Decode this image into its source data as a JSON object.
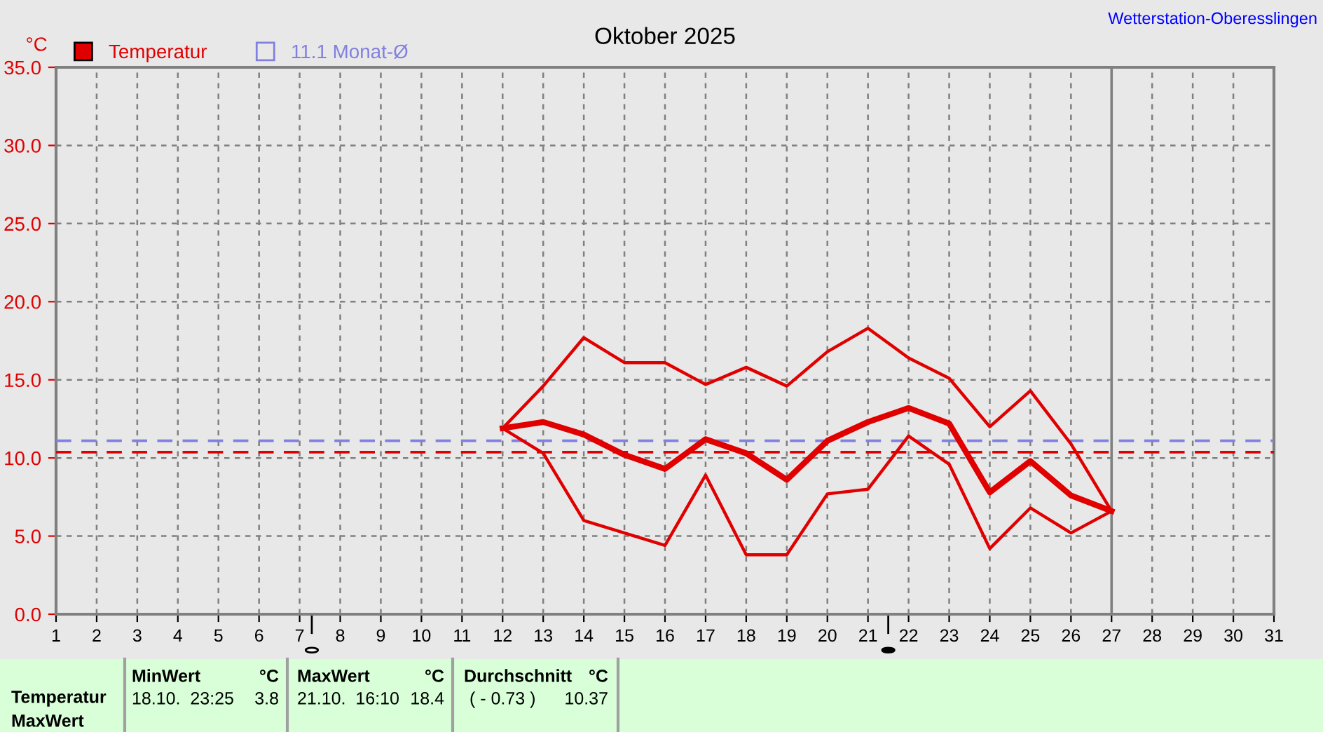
{
  "chart_data": {
    "type": "line",
    "title": "Oktober 2025",
    "ylabel": "°C",
    "x": [
      12,
      13,
      14,
      15,
      16,
      17,
      18,
      19,
      20,
      21,
      22,
      23,
      24,
      25,
      26,
      27
    ],
    "series": [
      {
        "color": "#e00000",
        "values": [
          11.9,
          14.6,
          17.7,
          16.1,
          16.1,
          14.7,
          15.8,
          14.6,
          16.8,
          18.3,
          16.4,
          15.1,
          12.0,
          14.3,
          10.9,
          6.6
        ]
      },
      {
        "name": "Temperatur",
        "color": "#e00000",
        "values": [
          11.9,
          12.3,
          11.5,
          10.2,
          9.3,
          11.2,
          10.3,
          8.6,
          11.1,
          12.3,
          13.2,
          12.2,
          7.8,
          9.8,
          7.6,
          6.6
        ]
      },
      {
        "color": "#e00000",
        "values": [
          11.9,
          10.3,
          6.0,
          5.2,
          4.4,
          8.9,
          3.8,
          3.8,
          7.7,
          8.0,
          11.4,
          9.6,
          4.2,
          6.8,
          5.2,
          6.6
        ]
      }
    ],
    "xlim": [
      1,
      31
    ],
    "xticks": [
      1,
      2,
      3,
      4,
      5,
      6,
      7,
      8,
      9,
      10,
      11,
      12,
      13,
      14,
      15,
      16,
      17,
      18,
      19,
      20,
      21,
      22,
      23,
      24,
      25,
      26,
      27,
      28,
      29,
      30,
      31
    ],
    "ylim": [
      0,
      35
    ],
    "yticks": [
      {
        "value": 0,
        "label": "0.0"
      },
      {
        "value": 5,
        "label": "5.0"
      },
      {
        "value": 10,
        "label": "10.0"
      },
      {
        "value": 15,
        "label": "15.0"
      },
      {
        "value": 20,
        "label": "20.0"
      },
      {
        "value": 25,
        "label": "25.0"
      },
      {
        "value": 30,
        "label": "30.0"
      },
      {
        "value": 35,
        "label": "35.0"
      }
    ],
    "ref_lines": [
      {
        "axis": "y",
        "value": 11.1,
        "label": "11.1 Monat-Ø",
        "color": "#8080e0",
        "line_style": "dashed"
      },
      {
        "axis": "y",
        "value": 10.37,
        "color": "#e00000",
        "line_style": "dashed"
      },
      {
        "axis": "x",
        "value": 27,
        "color": "#808080",
        "line_style": "solid"
      }
    ],
    "grid": true,
    "legend": "top left",
    "marker": "none",
    "line_style": "solid",
    "annotations": [
      "Wetterstation-Oberesslingen",
      "Temperatur",
      "MaxWert",
      "MinWert",
      "°C",
      "18.10.  23:25",
      "3.8",
      "MaxWert",
      "°C",
      "21.10.  16:10",
      "18.4",
      "Durchschnitt",
      "°C",
      "( - 0.73 )",
      "10.37"
    ]
  }
}
